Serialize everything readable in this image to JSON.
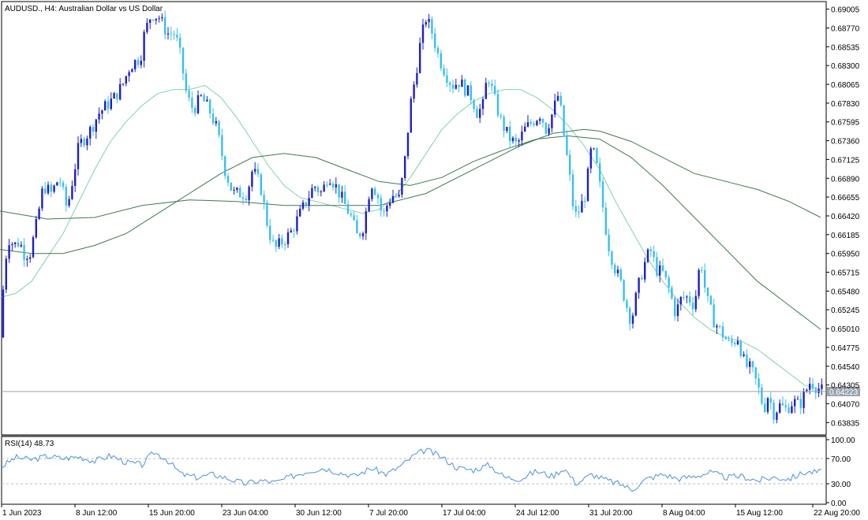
{
  "header": {
    "title": "AUDUSD., H4:  Australian Dollar vs US Dollar"
  },
  "rsi": {
    "label": "RSI(14) 48.73",
    "levels": [
      70,
      30
    ],
    "ticks": [
      "100.00",
      "70.00",
      "30.00",
      "0.00"
    ]
  },
  "colors": {
    "bull": "#1e1ecc",
    "bear": "#38bff0",
    "ma_fast": "#7fd3a8",
    "ma_slow": "#3f7a50",
    "rsi_line": "#4a90e2",
    "current_price_bg": "#9aa3ad",
    "grid_axis": "#000000"
  },
  "chart_data": {
    "type": "candlestick",
    "symbol": "AUDUSD.",
    "timeframe": "H4",
    "price_range": [
      0.637,
      0.6908
    ],
    "current_price": "0.64223",
    "y_ticks": [
      "0.69005",
      "0.68770",
      "0.68535",
      "0.68300",
      "0.68065",
      "0.67830",
      "0.67595",
      "0.67360",
      "0.67125",
      "0.66890",
      "0.66655",
      "0.66420",
      "0.66185",
      "0.65950",
      "0.65715",
      "0.65480",
      "0.65245",
      "0.65010",
      "0.64775",
      "0.64540",
      "0.64305",
      "0.64070",
      "0.63835"
    ],
    "x_ticks": [
      "1 Jun 2023",
      "8 Jun 12:00",
      "15 Jun 20:00",
      "23 Jun 04:00",
      "30 Jun 12:00",
      "7 Jul 20:00",
      "17 Jul 04:00",
      "24 Jul 12:00",
      "31 Jul 20:00",
      "8 Aug 04:00",
      "15 Aug 12:00",
      "22 Aug 20:00"
    ],
    "close_path": [
      [
        0,
        0.649
      ],
      [
        5,
        0.6565
      ],
      [
        10,
        0.6615
      ],
      [
        18,
        0.6605
      ],
      [
        25,
        0.661
      ],
      [
        30,
        0.6595
      ],
      [
        38,
        0.6595
      ],
      [
        45,
        0.6625
      ],
      [
        55,
        0.668
      ],
      [
        65,
        0.667
      ],
      [
        75,
        0.669
      ],
      [
        85,
        0.665
      ],
      [
        100,
        0.673
      ],
      [
        115,
        0.675
      ],
      [
        125,
        0.677
      ],
      [
        135,
        0.678
      ],
      [
        145,
        0.679
      ],
      [
        155,
        0.6805
      ],
      [
        165,
        0.683
      ],
      [
        178,
        0.684
      ],
      [
        183,
        0.687
      ],
      [
        192,
        0.6895
      ],
      [
        202,
        0.689
      ],
      [
        212,
        0.687
      ],
      [
        222,
        0.687
      ],
      [
        229,
        0.684
      ],
      [
        237,
        0.679
      ],
      [
        245,
        0.6775
      ],
      [
        255,
        0.679
      ],
      [
        265,
        0.6775
      ],
      [
        275,
        0.675
      ],
      [
        285,
        0.67
      ],
      [
        295,
        0.667
      ],
      [
        305,
        0.667
      ],
      [
        313,
        0.667
      ],
      [
        320,
        0.67
      ],
      [
        330,
        0.668
      ],
      [
        340,
        0.6625
      ],
      [
        348,
        0.66
      ],
      [
        358,
        0.661
      ],
      [
        368,
        0.662
      ],
      [
        378,
        0.664
      ],
      [
        388,
        0.666
      ],
      [
        398,
        0.668
      ],
      [
        408,
        0.667
      ],
      [
        416,
        0.6695
      ],
      [
        425,
        0.668
      ],
      [
        435,
        0.666
      ],
      [
        445,
        0.664
      ],
      [
        453,
        0.6615
      ],
      [
        461,
        0.663
      ],
      [
        470,
        0.6685
      ],
      [
        478,
        0.667
      ],
      [
        485,
        0.664
      ],
      [
        492,
        0.666
      ],
      [
        500,
        0.667
      ],
      [
        505,
        0.666
      ],
      [
        512,
        0.67
      ],
      [
        520,
        0.678
      ],
      [
        527,
        0.682
      ],
      [
        533,
        0.686
      ],
      [
        540,
        0.689
      ],
      [
        548,
        0.687
      ],
      [
        556,
        0.684
      ],
      [
        565,
        0.682
      ],
      [
        573,
        0.6805
      ],
      [
        582,
        0.681
      ],
      [
        590,
        0.68
      ],
      [
        598,
        0.679
      ],
      [
        605,
        0.677
      ],
      [
        612,
        0.678
      ],
      [
        618,
        0.682
      ],
      [
        626,
        0.679
      ],
      [
        635,
        0.676
      ],
      [
        645,
        0.674
      ],
      [
        655,
        0.673
      ],
      [
        665,
        0.675
      ],
      [
        675,
        0.676
      ],
      [
        685,
        0.677
      ],
      [
        692,
        0.675
      ],
      [
        700,
        0.677
      ],
      [
        708,
        0.6795
      ],
      [
        715,
        0.674
      ],
      [
        722,
        0.669
      ],
      [
        728,
        0.664
      ],
      [
        735,
        0.665
      ],
      [
        742,
        0.667
      ],
      [
        750,
        0.673
      ],
      [
        757,
        0.67
      ],
      [
        763,
        0.666
      ],
      [
        770,
        0.661
      ],
      [
        778,
        0.658
      ],
      [
        786,
        0.656
      ],
      [
        794,
        0.653
      ],
      [
        800,
        0.651
      ],
      [
        808,
        0.655
      ],
      [
        816,
        0.658
      ],
      [
        824,
        0.66
      ],
      [
        832,
        0.6575
      ],
      [
        840,
        0.657
      ],
      [
        848,
        0.655
      ],
      [
        856,
        0.652
      ],
      [
        864,
        0.654
      ],
      [
        872,
        0.654
      ],
      [
        880,
        0.653
      ],
      [
        888,
        0.659
      ],
      [
        895,
        0.654
      ],
      [
        905,
        0.651
      ],
      [
        915,
        0.6495
      ],
      [
        925,
        0.648
      ],
      [
        935,
        0.649
      ],
      [
        944,
        0.6455
      ],
      [
        952,
        0.645
      ],
      [
        960,
        0.643
      ],
      [
        968,
        0.64
      ],
      [
        974,
        0.642
      ],
      [
        980,
        0.6395
      ],
      [
        988,
        0.6405
      ],
      [
        996,
        0.64
      ],
      [
        1005,
        0.641
      ],
      [
        1013,
        0.6405
      ],
      [
        1020,
        0.642
      ],
      [
        1027,
        0.6435
      ],
      [
        1035,
        0.6428
      ],
      [
        1043,
        0.6422
      ]
    ],
    "ma_fast_path": [
      [
        0,
        0.654
      ],
      [
        20,
        0.6545
      ],
      [
        40,
        0.656
      ],
      [
        60,
        0.659
      ],
      [
        80,
        0.662
      ],
      [
        100,
        0.666
      ],
      [
        120,
        0.67
      ],
      [
        140,
        0.6735
      ],
      [
        160,
        0.676
      ],
      [
        180,
        0.678
      ],
      [
        200,
        0.6795
      ],
      [
        220,
        0.68
      ],
      [
        240,
        0.68
      ],
      [
        260,
        0.6805
      ],
      [
        280,
        0.679
      ],
      [
        300,
        0.6765
      ],
      [
        320,
        0.6735
      ],
      [
        340,
        0.6705
      ],
      [
        360,
        0.668
      ],
      [
        380,
        0.6665
      ],
      [
        400,
        0.666
      ],
      [
        420,
        0.6655
      ],
      [
        440,
        0.665
      ],
      [
        460,
        0.6645
      ],
      [
        480,
        0.665
      ],
      [
        500,
        0.6665
      ],
      [
        520,
        0.669
      ],
      [
        540,
        0.672
      ],
      [
        560,
        0.675
      ],
      [
        580,
        0.677
      ],
      [
        600,
        0.6785
      ],
      [
        620,
        0.6795
      ],
      [
        640,
        0.68
      ],
      [
        660,
        0.68
      ],
      [
        680,
        0.679
      ],
      [
        700,
        0.6775
      ],
      [
        720,
        0.6755
      ],
      [
        740,
        0.673
      ],
      [
        760,
        0.67
      ],
      [
        780,
        0.666
      ],
      [
        800,
        0.6625
      ],
      [
        820,
        0.659
      ],
      [
        840,
        0.656
      ],
      [
        860,
        0.6535
      ],
      [
        880,
        0.6515
      ],
      [
        900,
        0.65
      ],
      [
        920,
        0.649
      ],
      [
        940,
        0.6485
      ],
      [
        960,
        0.6475
      ],
      [
        980,
        0.646
      ],
      [
        1000,
        0.6445
      ],
      [
        1020,
        0.643
      ],
      [
        1040,
        0.6425
      ]
    ],
    "ma_slow_path": [
      [
        0,
        0.6648
      ],
      [
        60,
        0.6638
      ],
      [
        120,
        0.664
      ],
      [
        180,
        0.6655
      ],
      [
        240,
        0.6662
      ],
      [
        300,
        0.666
      ],
      [
        360,
        0.6655
      ],
      [
        420,
        0.6655
      ],
      [
        480,
        0.6655
      ],
      [
        540,
        0.667
      ],
      [
        600,
        0.67
      ],
      [
        660,
        0.673
      ],
      [
        700,
        0.6745
      ],
      [
        740,
        0.675
      ],
      [
        760,
        0.6748
      ],
      [
        800,
        0.6735
      ],
      [
        840,
        0.6715
      ],
      [
        880,
        0.6695
      ],
      [
        920,
        0.6685
      ],
      [
        960,
        0.6675
      ],
      [
        1000,
        0.666
      ],
      [
        1040,
        0.664
      ]
    ],
    "ma_slow2_path": [
      [
        0,
        0.66
      ],
      [
        40,
        0.6595
      ],
      [
        80,
        0.6595
      ],
      [
        120,
        0.6605
      ],
      [
        160,
        0.662
      ],
      [
        200,
        0.6645
      ],
      [
        240,
        0.667
      ],
      [
        280,
        0.6695
      ],
      [
        320,
        0.6715
      ],
      [
        360,
        0.672
      ],
      [
        400,
        0.6715
      ],
      [
        440,
        0.67
      ],
      [
        480,
        0.6685
      ],
      [
        520,
        0.668
      ],
      [
        560,
        0.669
      ],
      [
        600,
        0.671
      ],
      [
        640,
        0.6725
      ],
      [
        680,
        0.6738
      ],
      [
        720,
        0.6742
      ],
      [
        760,
        0.6738
      ],
      [
        800,
        0.6715
      ],
      [
        840,
        0.668
      ],
      [
        880,
        0.664
      ],
      [
        920,
        0.66
      ],
      [
        960,
        0.656
      ],
      [
        1000,
        0.653
      ],
      [
        1040,
        0.65
      ]
    ],
    "rsi_path": [
      [
        0,
        55
      ],
      [
        20,
        72
      ],
      [
        40,
        68
      ],
      [
        60,
        74
      ],
      [
        80,
        70
      ],
      [
        100,
        73
      ],
      [
        120,
        66
      ],
      [
        140,
        75
      ],
      [
        160,
        64
      ],
      [
        180,
        60
      ],
      [
        195,
        80
      ],
      [
        210,
        70
      ],
      [
        230,
        45
      ],
      [
        250,
        40
      ],
      [
        270,
        45
      ],
      [
        290,
        38
      ],
      [
        310,
        30
      ],
      [
        330,
        35
      ],
      [
        350,
        32
      ],
      [
        370,
        42
      ],
      [
        390,
        50
      ],
      [
        410,
        55
      ],
      [
        430,
        48
      ],
      [
        450,
        42
      ],
      [
        470,
        55
      ],
      [
        490,
        45
      ],
      [
        510,
        60
      ],
      [
        525,
        75
      ],
      [
        540,
        84
      ],
      [
        560,
        72
      ],
      [
        580,
        55
      ],
      [
        600,
        52
      ],
      [
        620,
        60
      ],
      [
        640,
        40
      ],
      [
        660,
        38
      ],
      [
        680,
        50
      ],
      [
        700,
        42
      ],
      [
        715,
        55
      ],
      [
        730,
        30
      ],
      [
        750,
        45
      ],
      [
        770,
        35
      ],
      [
        790,
        28
      ],
      [
        800,
        20
      ],
      [
        820,
        38
      ],
      [
        840,
        45
      ],
      [
        860,
        38
      ],
      [
        880,
        42
      ],
      [
        900,
        48
      ],
      [
        920,
        40
      ],
      [
        940,
        42
      ],
      [
        960,
        35
      ],
      [
        980,
        40
      ],
      [
        1000,
        38
      ],
      [
        1020,
        48
      ],
      [
        1043,
        49
      ]
    ]
  }
}
